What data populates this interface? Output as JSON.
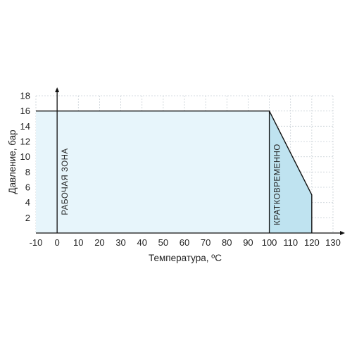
{
  "chart_data": {
    "type": "area",
    "xlabel": "Температура, ºC",
    "ylabel": "Давление, бар",
    "xlim": [
      -10,
      130
    ],
    "ylim": [
      0,
      18
    ],
    "x_ticks": [
      "-10",
      "0",
      "10",
      "20",
      "30",
      "40",
      "50",
      "60",
      "70",
      "80",
      "90",
      "100",
      "110",
      "120",
      "130"
    ],
    "y_ticks": [
      "2",
      "4",
      "6",
      "8",
      "10",
      "12",
      "14",
      "16",
      "18"
    ],
    "grid": true,
    "series": [
      {
        "x": [
          -10,
          100,
          120,
          120
        ],
        "y": [
          16,
          16,
          5,
          0
        ]
      }
    ],
    "regions": [
      {
        "label": "РАБОЧАЯ ЗОНА",
        "x_range": [
          -10,
          100
        ],
        "color": "#e7f5fb"
      },
      {
        "label": "КРАТКОВРЕМЕННО",
        "x_range": [
          100,
          120
        ],
        "color": "#bfe3f0"
      }
    ],
    "line_color": "#111111",
    "grid_color": "#c9d0d6"
  }
}
